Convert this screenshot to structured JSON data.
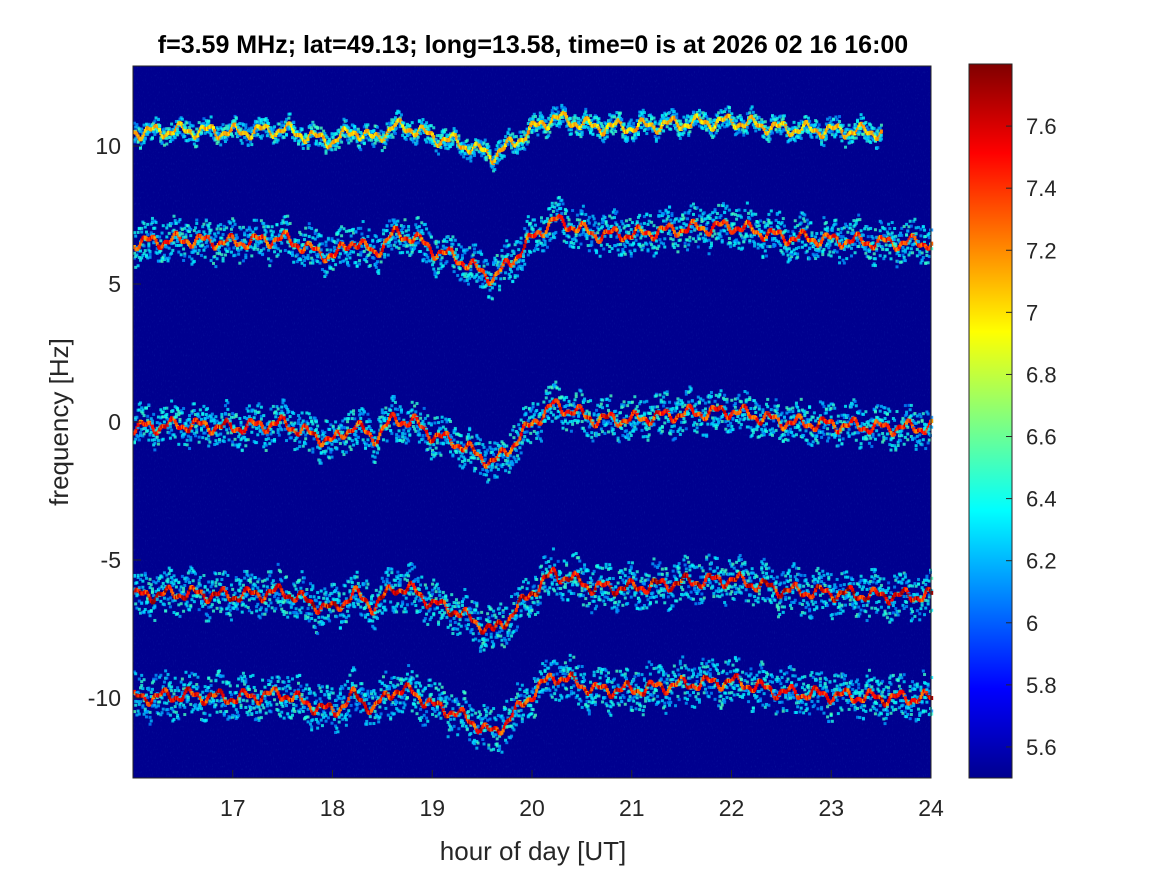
{
  "chart_data": {
    "type": "heatmap",
    "title": "f=3.59 MHz;  lat=49.13; long=13.58, time=0 is at 2026 02 16 16:00",
    "xlabel": "hour of day [UT]",
    "ylabel": "frequency [Hz]",
    "xlim": [
      16,
      24
    ],
    "ylim": [
      -12.9,
      12.9
    ],
    "xticks": [
      "17",
      "18",
      "19",
      "20",
      "21",
      "22",
      "23",
      "24"
    ],
    "yticks": [
      "-10",
      "-5",
      "0",
      "5",
      "10"
    ],
    "colorbar": {
      "colormap": "jet",
      "clim": [
        5.5,
        7.8
      ],
      "ticks": [
        "5.6",
        "5.8",
        "6",
        "6.2",
        "6.4",
        "6.6",
        "6.8",
        "7",
        "7.2",
        "7.4",
        "7.6"
      ]
    },
    "background_color": "#00008f",
    "traces": [
      {
        "offset_hz": 10.5,
        "amplitude": 0.65,
        "intensity": 0.55,
        "width_hz": 0.18,
        "visible_until_hour": 23.5
      },
      {
        "offset_hz": 6.5,
        "amplitude": 1.0,
        "intensity": 0.85,
        "width_hz": 0.35
      },
      {
        "offset_hz": -0.2,
        "amplitude": 1.0,
        "intensity": 0.9,
        "width_hz": 0.35
      },
      {
        "offset_hz": -6.3,
        "amplitude": 1.0,
        "intensity": 1.0,
        "width_hz": 0.38
      },
      {
        "offset_hz": -10.0,
        "amplitude": 1.0,
        "intensity": 0.95,
        "width_hz": 0.38
      }
    ],
    "trace_shape": {
      "hours": [
        16.0,
        16.5,
        17.0,
        17.5,
        17.8,
        18.0,
        18.2,
        18.4,
        18.6,
        18.8,
        19.0,
        19.2,
        19.4,
        19.6,
        19.8,
        20.0,
        20.2,
        20.4,
        20.6,
        21.0,
        21.5,
        22.0,
        22.5,
        23.0,
        23.5,
        24.0
      ],
      "deviation_hz": [
        0.0,
        0.1,
        0.0,
        0.15,
        -0.3,
        -0.5,
        0.1,
        -0.4,
        0.3,
        0.2,
        -0.3,
        -0.5,
        -0.9,
        -1.3,
        -0.6,
        0.2,
        0.8,
        0.6,
        0.3,
        0.3,
        0.5,
        0.6,
        0.2,
        0.1,
        0.0,
        0.0
      ]
    }
  }
}
